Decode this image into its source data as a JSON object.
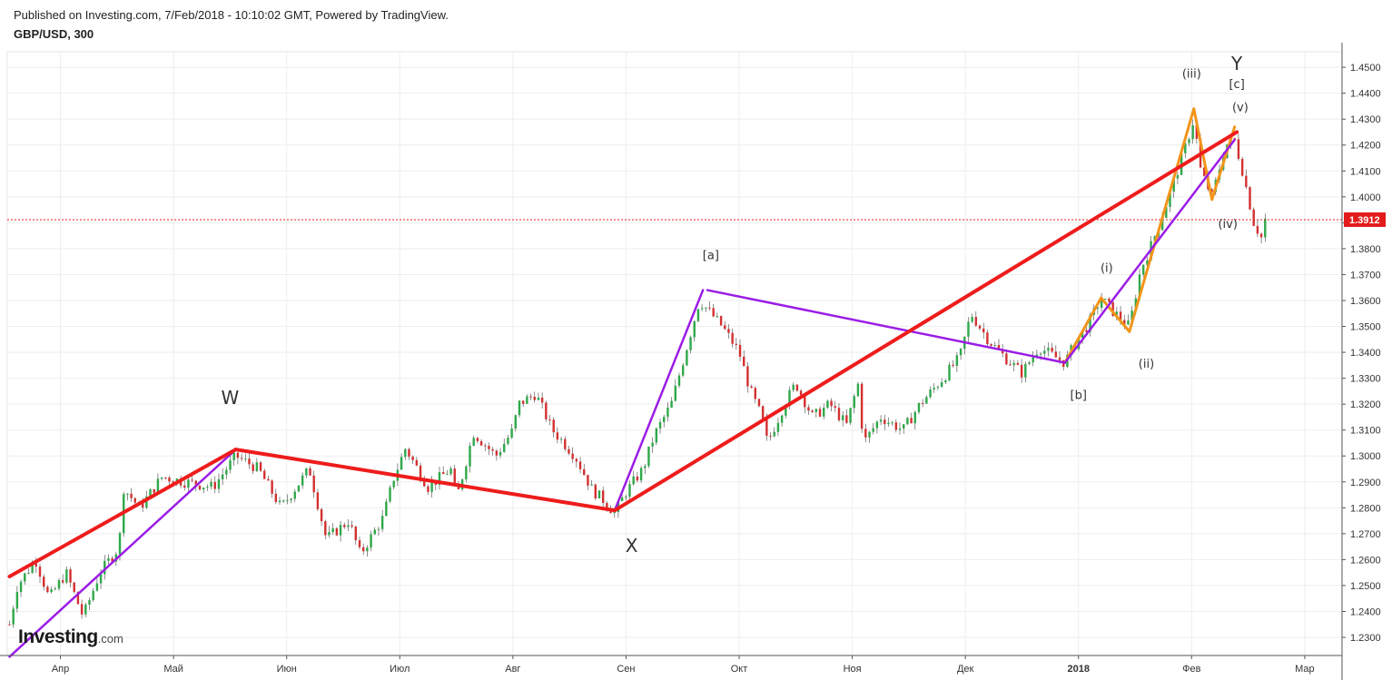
{
  "header": {
    "published": "Published on Investing.com, 7/Feb/2018 - 10:10:02 GMT, Powered by TradingView.",
    "symbol": "GBP/USD, 300"
  },
  "logo": {
    "brand": "Investing",
    "domain": ".com"
  },
  "chart_data": {
    "type": "line",
    "y_ticks": [
      "1.2300",
      "1.2400",
      "1.2500",
      "1.2600",
      "1.2700",
      "1.2800",
      "1.2900",
      "1.3000",
      "1.3100",
      "1.3200",
      "1.3300",
      "1.3400",
      "1.3500",
      "1.3600",
      "1.3700",
      "1.3800",
      "1.3900",
      "1.4000",
      "1.4100",
      "1.4200",
      "1.4300",
      "1.4400",
      "1.4500"
    ],
    "ylim": [
      1.223,
      1.456
    ],
    "x_ticks": [
      {
        "label": "Апр",
        "month": 1
      },
      {
        "label": "Май",
        "month": 2
      },
      {
        "label": "Июн",
        "month": 3
      },
      {
        "label": "Июл",
        "month": 4
      },
      {
        "label": "Авг",
        "month": 5
      },
      {
        "label": "Сен",
        "month": 6
      },
      {
        "label": "Окт",
        "month": 7
      },
      {
        "label": "Ноя",
        "month": 8
      },
      {
        "label": "Дек",
        "month": 9
      },
      {
        "label": "2018",
        "month": 10,
        "bold": true
      },
      {
        "label": "Фев",
        "month": 11
      },
      {
        "label": "Мар",
        "month": 12
      }
    ],
    "xlim": [
      0.53,
      12.33
    ],
    "current_price": {
      "value": 1.3912,
      "label": "1.3912",
      "color": "#e31b1b"
    },
    "colors": {
      "up": "#2ea84a",
      "down": "#d43030",
      "red": "#ee1c1c",
      "purple": "#9b1ce6",
      "orange": "#f29419"
    },
    "price_path": [
      [
        0.55,
        1.235
      ],
      [
        0.62,
        1.25
      ],
      [
        0.78,
        1.26
      ],
      [
        0.9,
        1.245
      ],
      [
        1.05,
        1.255
      ],
      [
        1.2,
        1.238
      ],
      [
        1.35,
        1.255
      ],
      [
        1.52,
        1.265
      ],
      [
        1.55,
        1.288
      ],
      [
        1.7,
        1.28
      ],
      [
        1.9,
        1.292
      ],
      [
        2.1,
        1.29
      ],
      [
        2.35,
        1.288
      ],
      [
        2.55,
        1.3
      ],
      [
        2.75,
        1.295
      ],
      [
        2.95,
        1.28
      ],
      [
        3.2,
        1.295
      ],
      [
        3.35,
        1.268
      ],
      [
        3.55,
        1.275
      ],
      [
        3.65,
        1.262
      ],
      [
        3.85,
        1.276
      ],
      [
        3.95,
        1.292
      ],
      [
        4.05,
        1.303
      ],
      [
        4.25,
        1.288
      ],
      [
        4.45,
        1.295
      ],
      [
        4.5,
        1.283
      ],
      [
        4.65,
        1.309
      ],
      [
        4.85,
        1.3
      ],
      [
        5.0,
        1.31
      ],
      [
        5.05,
        1.32
      ],
      [
        5.2,
        1.324
      ],
      [
        5.35,
        1.31
      ],
      [
        5.55,
        1.3
      ],
      [
        5.7,
        1.287
      ],
      [
        5.8,
        1.283
      ],
      [
        5.9,
        1.278
      ],
      [
        6.0,
        1.286
      ],
      [
        6.15,
        1.295
      ],
      [
        6.25,
        1.308
      ],
      [
        6.4,
        1.32
      ],
      [
        6.55,
        1.344
      ],
      [
        6.65,
        1.36
      ],
      [
        6.85,
        1.35
      ],
      [
        7.0,
        1.34
      ],
      [
        7.1,
        1.325
      ],
      [
        7.2,
        1.315
      ],
      [
        7.25,
        1.305
      ],
      [
        7.4,
        1.32
      ],
      [
        7.5,
        1.328
      ],
      [
        7.65,
        1.315
      ],
      [
        7.8,
        1.32
      ],
      [
        7.95,
        1.312
      ],
      [
        8.05,
        1.328
      ],
      [
        8.1,
        1.305
      ],
      [
        8.25,
        1.315
      ],
      [
        8.45,
        1.31
      ],
      [
        8.6,
        1.32
      ],
      [
        8.8,
        1.33
      ],
      [
        8.95,
        1.338
      ],
      [
        9.05,
        1.355
      ],
      [
        9.2,
        1.345
      ],
      [
        9.35,
        1.338
      ],
      [
        9.5,
        1.332
      ],
      [
        9.65,
        1.342
      ],
      [
        9.8,
        1.338
      ],
      [
        9.88,
        1.336
      ],
      [
        9.95,
        1.342
      ],
      [
        10.1,
        1.352
      ],
      [
        10.2,
        1.361
      ],
      [
        10.3,
        1.356
      ],
      [
        10.45,
        1.35
      ],
      [
        10.55,
        1.372
      ],
      [
        10.65,
        1.382
      ],
      [
        10.8,
        1.4
      ],
      [
        10.95,
        1.42
      ],
      [
        11.02,
        1.43
      ],
      [
        11.08,
        1.41
      ],
      [
        11.18,
        1.4
      ],
      [
        11.3,
        1.42
      ],
      [
        11.38,
        1.422
      ],
      [
        11.45,
        1.41
      ],
      [
        11.55,
        1.39
      ],
      [
        11.62,
        1.384
      ],
      [
        11.65,
        1.3912
      ]
    ]
  },
  "overlays": {
    "red_lines": [
      {
        "from": [
          0.55,
          1.2535
        ],
        "to": [
          2.55,
          1.3025
        ]
      },
      {
        "from": [
          2.55,
          1.3025
        ],
        "to": [
          5.9,
          1.279
        ]
      },
      {
        "from": [
          5.9,
          1.279
        ],
        "to": [
          11.4,
          1.425
        ]
      }
    ],
    "purple_lines": [
      {
        "from": [
          0.55,
          1.2225
        ],
        "to": [
          2.55,
          1.3025
        ]
      },
      {
        "from": [
          5.9,
          1.279
        ],
        "to": [
          6.68,
          1.364
        ]
      },
      {
        "from": [
          6.72,
          1.364
        ],
        "to": [
          9.88,
          1.336
        ]
      },
      {
        "from": [
          9.88,
          1.336
        ],
        "to": [
          11.38,
          1.422
        ]
      }
    ],
    "orange_lines": [
      {
        "from": [
          9.88,
          1.336
        ],
        "to": [
          10.2,
          1.361
        ]
      },
      {
        "from": [
          10.2,
          1.361
        ],
        "to": [
          10.45,
          1.348
        ]
      },
      {
        "from": [
          10.45,
          1.348
        ],
        "to": [
          11.02,
          1.434
        ]
      },
      {
        "from": [
          11.02,
          1.434
        ],
        "to": [
          11.18,
          1.399
        ]
      },
      {
        "from": [
          11.18,
          1.399
        ],
        "to": [
          11.38,
          1.427
        ]
      }
    ]
  },
  "wave_labels": [
    {
      "text": "W",
      "at": [
        2.5,
        1.32
      ],
      "size": "large"
    },
    {
      "text": "X",
      "at": [
        6.05,
        1.263
      ],
      "size": "large"
    },
    {
      "text": "Y",
      "at": [
        11.4,
        1.449
      ],
      "size": "large"
    },
    {
      "text": "[a]",
      "at": [
        6.75,
        1.376
      ],
      "size": "small"
    },
    {
      "text": "[b]",
      "at": [
        10.0,
        1.322
      ],
      "size": "small"
    },
    {
      "text": "[c]",
      "at": [
        11.4,
        1.442
      ],
      "size": "small"
    },
    {
      "text": "(i)",
      "at": [
        10.25,
        1.371
      ],
      "size": "small"
    },
    {
      "text": "(ii)",
      "at": [
        10.6,
        1.334
      ],
      "size": "small"
    },
    {
      "text": "(iii)",
      "at": [
        11.0,
        1.446
      ],
      "size": "small"
    },
    {
      "text": "(iv)",
      "at": [
        11.32,
        1.388
      ],
      "size": "small"
    },
    {
      "text": "(v)",
      "at": [
        11.43,
        1.433
      ],
      "size": "small"
    }
  ]
}
